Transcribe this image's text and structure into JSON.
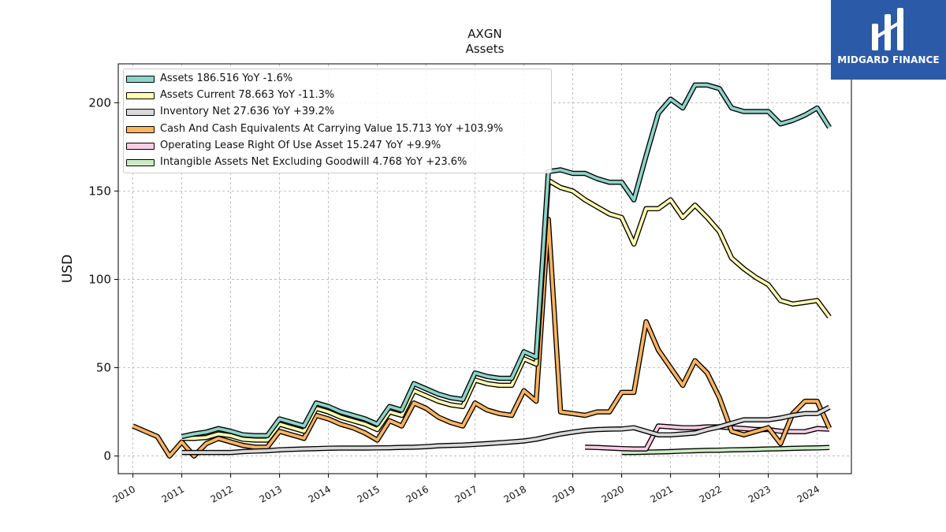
{
  "chart_data": {
    "type": "line",
    "title": "AXGN",
    "subtitle": "Assets",
    "ylabel": "USD",
    "xlabel": "",
    "xlim": [
      2009.7,
      2024.7
    ],
    "ylim": [
      -10,
      222
    ],
    "x_ticks": [
      "2010",
      "2011",
      "2012",
      "2013",
      "2014",
      "2015",
      "2016",
      "2017",
      "2018",
      "2019",
      "2020",
      "2021",
      "2022",
      "2023",
      "2024"
    ],
    "y_ticks": [
      "0",
      "50",
      "100",
      "150",
      "200"
    ],
    "grid": true,
    "legend_position": "top-left",
    "series": [
      {
        "name": "Assets",
        "legend": "Assets  186.516 YoY -1.6%",
        "color": "#8dd3c7",
        "points": [
          [
            2011.0,
            11
          ],
          [
            2011.25,
            12.5
          ],
          [
            2011.5,
            13.5
          ],
          [
            2011.75,
            15.5
          ],
          [
            2012.0,
            14
          ],
          [
            2012.25,
            12
          ],
          [
            2012.5,
            11.5
          ],
          [
            2012.75,
            11.5
          ],
          [
            2013.0,
            21
          ],
          [
            2013.25,
            19
          ],
          [
            2013.5,
            17
          ],
          [
            2013.75,
            30
          ],
          [
            2014.0,
            28
          ],
          [
            2014.25,
            25
          ],
          [
            2014.5,
            23
          ],
          [
            2014.75,
            21
          ],
          [
            2015.0,
            18
          ],
          [
            2015.25,
            28
          ],
          [
            2015.5,
            26
          ],
          [
            2015.75,
            41
          ],
          [
            2016.0,
            38
          ],
          [
            2016.25,
            35
          ],
          [
            2016.5,
            33
          ],
          [
            2016.75,
            32
          ],
          [
            2017.0,
            47
          ],
          [
            2017.25,
            45
          ],
          [
            2017.5,
            44
          ],
          [
            2017.75,
            44
          ],
          [
            2018.0,
            59
          ],
          [
            2018.25,
            56
          ],
          [
            2018.5,
            161
          ],
          [
            2018.75,
            162
          ],
          [
            2019.0,
            160
          ],
          [
            2019.25,
            160
          ],
          [
            2019.5,
            157
          ],
          [
            2019.75,
            155
          ],
          [
            2020.0,
            155
          ],
          [
            2020.25,
            145
          ],
          [
            2020.5,
            170
          ],
          [
            2020.75,
            194
          ],
          [
            2021.0,
            202
          ],
          [
            2021.25,
            197
          ],
          [
            2021.5,
            210
          ],
          [
            2021.75,
            210
          ],
          [
            2022.0,
            208
          ],
          [
            2022.25,
            197
          ],
          [
            2022.5,
            195
          ],
          [
            2022.75,
            195
          ],
          [
            2023.0,
            195
          ],
          [
            2023.25,
            188
          ],
          [
            2023.5,
            190
          ],
          [
            2023.75,
            193
          ],
          [
            2024.0,
            197
          ],
          [
            2024.25,
            186
          ]
        ]
      },
      {
        "name": "Assets Current",
        "legend": "Assets Current  78.663 YoY -11.3%",
        "color": "#ffffb3",
        "points": [
          [
            2011.0,
            10
          ],
          [
            2011.25,
            10
          ],
          [
            2011.5,
            10.5
          ],
          [
            2011.75,
            12.5
          ],
          [
            2012.0,
            11.5
          ],
          [
            2012.25,
            9.5
          ],
          [
            2012.5,
            9
          ],
          [
            2012.75,
            9
          ],
          [
            2013.0,
            18
          ],
          [
            2013.25,
            16
          ],
          [
            2013.5,
            14
          ],
          [
            2013.75,
            27
          ],
          [
            2014.0,
            25
          ],
          [
            2014.25,
            22
          ],
          [
            2014.5,
            20
          ],
          [
            2014.75,
            18
          ],
          [
            2015.0,
            15
          ],
          [
            2015.25,
            25
          ],
          [
            2015.5,
            23
          ],
          [
            2015.75,
            37
          ],
          [
            2016.0,
            34
          ],
          [
            2016.25,
            31
          ],
          [
            2016.5,
            29
          ],
          [
            2016.75,
            28
          ],
          [
            2017.0,
            43
          ],
          [
            2017.25,
            41
          ],
          [
            2017.5,
            40
          ],
          [
            2017.75,
            40
          ],
          [
            2018.0,
            55
          ],
          [
            2018.25,
            52
          ],
          [
            2018.5,
            156
          ],
          [
            2018.75,
            152
          ],
          [
            2019.0,
            150
          ],
          [
            2019.25,
            145
          ],
          [
            2019.5,
            141
          ],
          [
            2019.75,
            137
          ],
          [
            2020.0,
            135
          ],
          [
            2020.25,
            120
          ],
          [
            2020.5,
            140
          ],
          [
            2020.75,
            140
          ],
          [
            2021.0,
            145
          ],
          [
            2021.25,
            135
          ],
          [
            2021.5,
            142
          ],
          [
            2021.75,
            135
          ],
          [
            2022.0,
            127
          ],
          [
            2022.25,
            112
          ],
          [
            2022.5,
            106
          ],
          [
            2022.75,
            101
          ],
          [
            2023.0,
            97
          ],
          [
            2023.25,
            88
          ],
          [
            2023.5,
            86
          ],
          [
            2023.75,
            87
          ],
          [
            2024.0,
            88
          ],
          [
            2024.25,
            78.7
          ]
        ]
      },
      {
        "name": "Inventory Net",
        "legend": "Inventory Net  27.636 YoY +39.2%",
        "color": "#d9d9d9",
        "points": [
          [
            2011.0,
            2
          ],
          [
            2011.25,
            2
          ],
          [
            2011.5,
            2
          ],
          [
            2011.75,
            2
          ],
          [
            2012.0,
            2
          ],
          [
            2012.25,
            2.5
          ],
          [
            2012.5,
            2.8
          ],
          [
            2012.75,
            3
          ],
          [
            2013.0,
            3.5
          ],
          [
            2013.25,
            3.8
          ],
          [
            2013.5,
            4
          ],
          [
            2013.75,
            4.2
          ],
          [
            2014.0,
            4.4
          ],
          [
            2014.25,
            4.5
          ],
          [
            2014.5,
            4.5
          ],
          [
            2014.75,
            4.5
          ],
          [
            2015.0,
            4.6
          ],
          [
            2015.25,
            4.7
          ],
          [
            2015.5,
            4.9
          ],
          [
            2015.75,
            5
          ],
          [
            2016.0,
            5.3
          ],
          [
            2016.25,
            5.8
          ],
          [
            2016.5,
            6
          ],
          [
            2016.75,
            6.2
          ],
          [
            2017.0,
            6.6
          ],
          [
            2017.25,
            7
          ],
          [
            2017.5,
            7.5
          ],
          [
            2017.75,
            8
          ],
          [
            2018.0,
            8.5
          ],
          [
            2018.25,
            9.5
          ],
          [
            2018.5,
            11
          ],
          [
            2018.75,
            12.5
          ],
          [
            2019.0,
            13.5
          ],
          [
            2019.25,
            14.5
          ],
          [
            2019.5,
            15
          ],
          [
            2019.75,
            15.2
          ],
          [
            2020.0,
            15.3
          ],
          [
            2020.25,
            16
          ],
          [
            2020.5,
            14
          ],
          [
            2020.75,
            12
          ],
          [
            2021.0,
            12
          ],
          [
            2021.25,
            12.5
          ],
          [
            2021.5,
            13
          ],
          [
            2021.75,
            15
          ],
          [
            2022.0,
            16.5
          ],
          [
            2022.25,
            18.5
          ],
          [
            2022.5,
            20.5
          ],
          [
            2022.75,
            20.5
          ],
          [
            2023.0,
            20.5
          ],
          [
            2023.25,
            21.5
          ],
          [
            2023.5,
            23
          ],
          [
            2023.75,
            24
          ],
          [
            2024.0,
            24
          ],
          [
            2024.25,
            27.6
          ]
        ]
      },
      {
        "name": "Cash And Cash Equivalents At Carrying Value",
        "legend": "Cash And Cash Equivalents At Carrying Value  15.713 YoY +103.9%",
        "color": "#fdb462",
        "points": [
          [
            2010.0,
            17
          ],
          [
            2010.25,
            14
          ],
          [
            2010.5,
            11
          ],
          [
            2010.75,
            0
          ],
          [
            2011.0,
            8
          ],
          [
            2011.25,
            0
          ],
          [
            2011.5,
            7
          ],
          [
            2011.75,
            10
          ],
          [
            2012.0,
            8
          ],
          [
            2012.25,
            6
          ],
          [
            2012.5,
            5
          ],
          [
            2012.75,
            5
          ],
          [
            2013.0,
            14
          ],
          [
            2013.25,
            12
          ],
          [
            2013.5,
            10
          ],
          [
            2013.75,
            23
          ],
          [
            2014.0,
            21
          ],
          [
            2014.25,
            18
          ],
          [
            2014.5,
            16
          ],
          [
            2014.75,
            13
          ],
          [
            2015.0,
            9
          ],
          [
            2015.25,
            20
          ],
          [
            2015.5,
            17
          ],
          [
            2015.75,
            30
          ],
          [
            2016.0,
            27
          ],
          [
            2016.25,
            22
          ],
          [
            2016.5,
            19
          ],
          [
            2016.75,
            17
          ],
          [
            2017.0,
            30
          ],
          [
            2017.25,
            26
          ],
          [
            2017.5,
            24
          ],
          [
            2017.75,
            23
          ],
          [
            2018.0,
            37
          ],
          [
            2018.25,
            31
          ],
          [
            2018.5,
            134
          ],
          [
            2018.75,
            25
          ],
          [
            2019.0,
            24
          ],
          [
            2019.25,
            23
          ],
          [
            2019.5,
            25
          ],
          [
            2019.75,
            25
          ],
          [
            2020.0,
            36
          ],
          [
            2020.25,
            36
          ],
          [
            2020.5,
            76
          ],
          [
            2020.75,
            60
          ],
          [
            2021.0,
            50
          ],
          [
            2021.25,
            40
          ],
          [
            2021.5,
            54
          ],
          [
            2021.75,
            47
          ],
          [
            2022.0,
            33
          ],
          [
            2022.25,
            14
          ],
          [
            2022.5,
            12
          ],
          [
            2022.75,
            14
          ],
          [
            2023.0,
            16
          ],
          [
            2023.25,
            7
          ],
          [
            2023.5,
            24
          ],
          [
            2023.75,
            31
          ],
          [
            2024.0,
            31
          ],
          [
            2024.25,
            15.7
          ]
        ]
      },
      {
        "name": "Operating Lease Right Of Use Asset",
        "legend": "Operating Lease Right Of Use Asset  15.247 YoY +9.9%",
        "color": "#fccde5",
        "points": [
          [
            2019.25,
            5
          ],
          [
            2019.5,
            4.8
          ],
          [
            2019.75,
            4.5
          ],
          [
            2020.0,
            4.2
          ],
          [
            2020.25,
            4
          ],
          [
            2020.5,
            4
          ],
          [
            2020.75,
            17
          ],
          [
            2021.0,
            16.5
          ],
          [
            2021.25,
            16
          ],
          [
            2021.5,
            16
          ],
          [
            2021.75,
            16.5
          ],
          [
            2022.0,
            16.5
          ],
          [
            2022.25,
            16
          ],
          [
            2022.5,
            15.5
          ],
          [
            2022.75,
            15
          ],
          [
            2023.0,
            15
          ],
          [
            2023.25,
            14
          ],
          [
            2023.5,
            13.8
          ],
          [
            2023.75,
            13.8
          ],
          [
            2024.0,
            15.5
          ],
          [
            2024.25,
            15.2
          ]
        ]
      },
      {
        "name": "Intangible Assets Net Excluding Goodwill",
        "legend": "Intangible Assets Net Excluding Goodwill  4.768 YoY +23.6%",
        "color": "#ccebc5",
        "points": [
          [
            2020.0,
            2
          ],
          [
            2020.25,
            2
          ],
          [
            2020.5,
            2.2
          ],
          [
            2020.75,
            2.3
          ],
          [
            2021.0,
            2.5
          ],
          [
            2021.25,
            2.8
          ],
          [
            2021.5,
            3
          ],
          [
            2021.75,
            3.2
          ],
          [
            2022.0,
            3.3
          ],
          [
            2022.25,
            3.5
          ],
          [
            2022.5,
            3.6
          ],
          [
            2022.75,
            3.8
          ],
          [
            2023.0,
            4
          ],
          [
            2023.25,
            4.1
          ],
          [
            2023.5,
            4.3
          ],
          [
            2023.75,
            4.5
          ],
          [
            2024.0,
            4.6
          ],
          [
            2024.25,
            4.8
          ]
        ]
      }
    ]
  },
  "logo": {
    "text": "MIDGARD FINANCE"
  }
}
